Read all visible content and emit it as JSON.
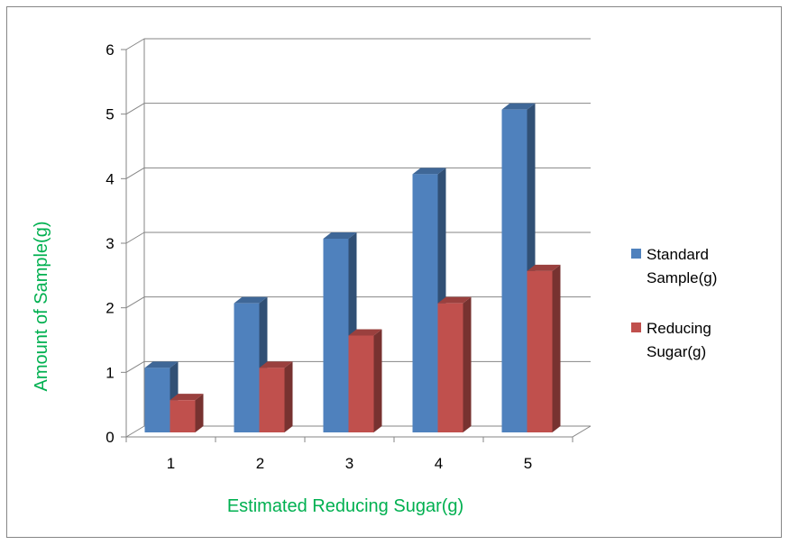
{
  "chart_data": {
    "type": "bar",
    "title": "",
    "xlabel": "Estimated Reducing Sugar(g)",
    "ylabel": "Amount of Sample(g)",
    "categories": [
      "1",
      "2",
      "3",
      "4",
      "5"
    ],
    "y_ticks": [
      "0",
      "1",
      "2",
      "3",
      "4",
      "5",
      "6"
    ],
    "ylim": [
      0,
      6
    ],
    "grid": true,
    "legend_position": "right",
    "series": [
      {
        "name": "Standard Sample(g)",
        "legend_lines": [
          "Standard",
          "Sample(g)"
        ],
        "values": [
          1,
          2,
          3,
          4,
          5
        ],
        "color": "#4F81BD"
      },
      {
        "name": "Reducing Sugar(g)",
        "legend_lines": [
          "Reducing",
          "Sugar(g)"
        ],
        "values": [
          0.5,
          1,
          1.5,
          2,
          2.5
        ],
        "color": "#C0504D"
      }
    ],
    "axis_label_color": "#00B050"
  }
}
